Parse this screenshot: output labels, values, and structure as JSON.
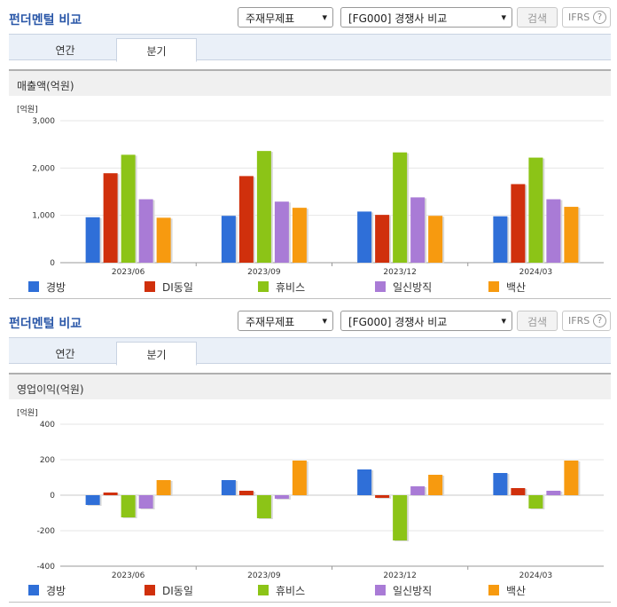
{
  "panels": [
    {
      "title": "펀더멘털 비교",
      "select1": "주재무제표",
      "select2": "[FG000] 경쟁사 비교",
      "search_label": "검색",
      "ifrs_label": "IFRS",
      "help_glyph": "?",
      "tabs": [
        "연간",
        "분기"
      ],
      "active_tab": "분기",
      "metric_label": "매출액(억원)"
    },
    {
      "title": "펀더멘털 비교",
      "select1": "주재무제표",
      "select2": "[FG000] 경쟁사 비교",
      "search_label": "검색",
      "ifrs_label": "IFRS",
      "help_glyph": "?",
      "tabs": [
        "연간",
        "분기"
      ],
      "active_tab": "분기",
      "metric_label": "영업이익(억원)"
    }
  ],
  "colors": {
    "경방": "#2f6fd8",
    "DI동일": "#d0300c",
    "휴비스": "#8cc417",
    "일신방직": "#a97bd6",
    "백산": "#f79a0f"
  },
  "chart_data": [
    {
      "type": "bar",
      "unit_label": "[억원]",
      "categories": [
        "2023/06",
        "2023/09",
        "2023/12",
        "2024/03"
      ],
      "ylim": [
        0,
        3000
      ],
      "yticks": [
        0,
        1000,
        2000,
        3000
      ],
      "ytick_labels": [
        "0",
        "1,000",
        "2,000",
        "3,000"
      ],
      "grid": true,
      "legend": "bottom",
      "series": [
        {
          "name": "경방",
          "values": [
            960,
            990,
            1080,
            980
          ]
        },
        {
          "name": "DI동일",
          "values": [
            1890,
            1830,
            1010,
            1660
          ]
        },
        {
          "name": "휴비스",
          "values": [
            2280,
            2360,
            2330,
            2220
          ]
        },
        {
          "name": "일신방직",
          "values": [
            1340,
            1290,
            1380,
            1340
          ]
        },
        {
          "name": "백산",
          "values": [
            950,
            1160,
            990,
            1180
          ]
        }
      ]
    },
    {
      "type": "bar",
      "unit_label": "[억원]",
      "categories": [
        "2023/06",
        "2023/09",
        "2023/12",
        "2024/03"
      ],
      "ylim": [
        -400,
        400
      ],
      "yticks": [
        -400,
        -200,
        0,
        200,
        400
      ],
      "ytick_labels": [
        "-400",
        "-200",
        "0",
        "200",
        "400"
      ],
      "grid": true,
      "legend": "bottom",
      "series": [
        {
          "name": "경방",
          "values": [
            -55,
            85,
            145,
            125
          ]
        },
        {
          "name": "DI동일",
          "values": [
            15,
            25,
            -15,
            40
          ]
        },
        {
          "name": "휴비스",
          "values": [
            -125,
            -130,
            -255,
            -75
          ]
        },
        {
          "name": "일신방직",
          "values": [
            -75,
            -20,
            50,
            25
          ]
        },
        {
          "name": "백산",
          "values": [
            85,
            195,
            115,
            195
          ]
        }
      ]
    }
  ]
}
